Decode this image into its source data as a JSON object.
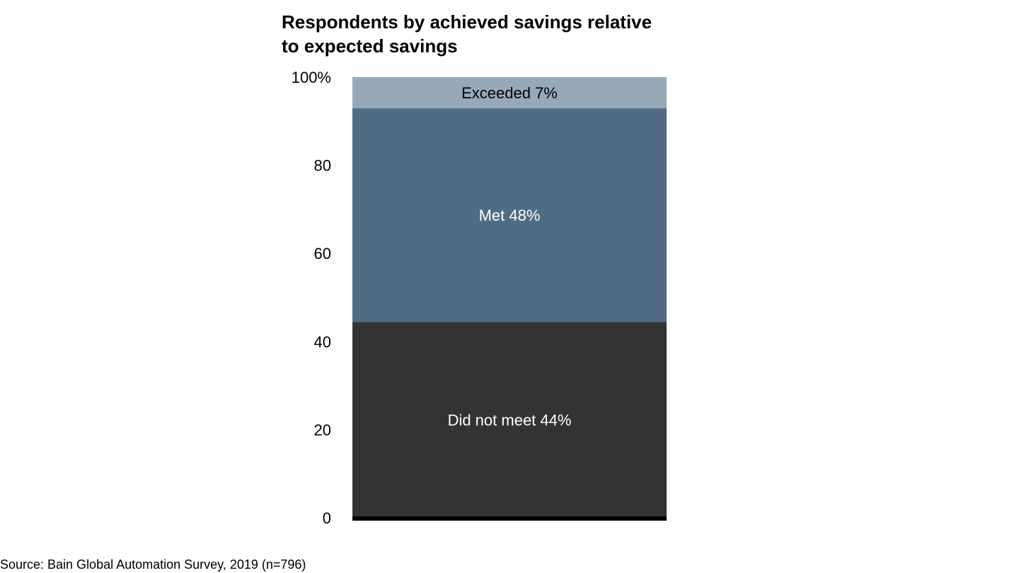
{
  "chart_data": {
    "type": "bar",
    "stacked": true,
    "title": [
      "Respondents by achieved savings relative",
      "to expected savings"
    ],
    "xlabel": "",
    "ylabel": "",
    "ylim": [
      0,
      100
    ],
    "yticks": [
      "0",
      "20",
      "40",
      "60",
      "80",
      "100%"
    ],
    "ytick_values": [
      0,
      20,
      40,
      60,
      80,
      100
    ],
    "grid": false,
    "categories": [
      ""
    ],
    "series": [
      {
        "name": "Did not meet",
        "values": [
          44
        ],
        "label": "Did not meet 44%",
        "color": "#333333",
        "label_color": "#ffffff"
      },
      {
        "name": "Met",
        "values": [
          48
        ],
        "label": "Met 48%",
        "color": "#506b84",
        "label_color": "#ffffff"
      },
      {
        "name": "Exceeded",
        "values": [
          7
        ],
        "label": "Exceeded 7%",
        "color": "#97a8b7",
        "label_color": "#000000"
      }
    ],
    "baseline_color": "#000000"
  },
  "source": "Source: Bain Global Automation Survey, 2019 (n=796)"
}
